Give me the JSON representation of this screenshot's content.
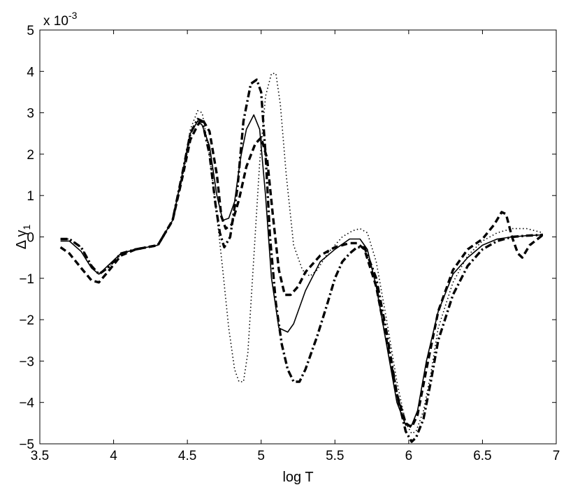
{
  "chart_data": {
    "type": "line",
    "title": "",
    "xlabel": "log T",
    "ylabel_main": "Δ γ",
    "ylabel_sub": "1",
    "y_multiplier": {
      "base": "x 10",
      "exponent": "-3"
    },
    "xlim": [
      3.5,
      7
    ],
    "ylim": [
      -5,
      5
    ],
    "x_ticks": [
      3.5,
      4,
      4.5,
      5,
      5.5,
      6,
      6.5,
      7
    ],
    "x_tick_labels": [
      "3.5",
      "4",
      "4.5",
      "5",
      "5.5",
      "6",
      "6.5",
      "7"
    ],
    "y_ticks": [
      -5,
      -4,
      -3,
      -2,
      -1,
      0,
      1,
      2,
      3,
      4,
      5
    ],
    "y_tick_labels": [
      "−5",
      "−4",
      "−3",
      "−2",
      "−1",
      "0",
      "1",
      "2",
      "3",
      "4",
      "5"
    ],
    "grid": false,
    "legend": "none",
    "series": [
      {
        "style": "solid",
        "color": "#000000",
        "x": [
          3.64,
          3.7,
          3.78,
          3.85,
          3.9,
          3.96,
          4.05,
          4.15,
          4.3,
          4.4,
          4.47,
          4.52,
          4.57,
          4.6,
          4.65,
          4.7,
          4.74,
          4.78,
          4.82,
          4.86,
          4.9,
          4.95,
          4.99,
          5.03,
          5.07,
          5.12,
          5.18,
          5.22,
          5.3,
          5.4,
          5.5,
          5.6,
          5.67,
          5.72,
          5.78,
          5.85,
          5.92,
          5.98,
          6.02,
          6.06,
          6.12,
          6.2,
          6.3,
          6.4,
          6.5,
          6.6,
          6.7,
          6.8,
          6.91
        ],
        "y": [
          -0.1,
          -0.1,
          -0.35,
          -0.75,
          -0.9,
          -0.7,
          -0.4,
          -0.3,
          -0.2,
          0.4,
          1.6,
          2.5,
          2.8,
          2.7,
          2.2,
          1.0,
          0.4,
          0.45,
          0.85,
          1.9,
          2.6,
          2.95,
          2.6,
          1.0,
          -1.0,
          -2.2,
          -2.3,
          -2.1,
          -1.3,
          -0.6,
          -0.3,
          -0.05,
          -0.05,
          -0.3,
          -1.2,
          -2.6,
          -4.0,
          -4.55,
          -4.55,
          -4.2,
          -3.0,
          -1.8,
          -0.9,
          -0.5,
          -0.2,
          -0.05,
          0.0,
          0.03,
          0.05
        ]
      },
      {
        "style": "dashed",
        "color": "#000000",
        "x": [
          3.64,
          3.7,
          3.78,
          3.85,
          3.9,
          3.96,
          4.05,
          4.15,
          4.3,
          4.4,
          4.47,
          4.52,
          4.57,
          4.6,
          4.65,
          4.7,
          4.73,
          4.76,
          4.8,
          4.85,
          4.9,
          4.96,
          5.0,
          5.04,
          5.08,
          5.12,
          5.16,
          5.2,
          5.25,
          5.3,
          5.4,
          5.5,
          5.6,
          5.65,
          5.7,
          5.78,
          5.85,
          5.92,
          5.98,
          6.02,
          6.06,
          6.12,
          6.2,
          6.3,
          6.4,
          6.5,
          6.58,
          6.63,
          6.66,
          6.7,
          6.74,
          6.77,
          6.82,
          6.91
        ],
        "y": [
          -0.25,
          -0.4,
          -0.75,
          -1.05,
          -1.1,
          -0.85,
          -0.45,
          -0.3,
          -0.2,
          0.4,
          1.5,
          2.35,
          2.7,
          2.85,
          2.55,
          1.5,
          0.5,
          0.2,
          0.3,
          0.9,
          1.7,
          2.25,
          2.4,
          1.9,
          0.5,
          -0.8,
          -1.4,
          -1.4,
          -1.2,
          -0.85,
          -0.45,
          -0.25,
          -0.15,
          -0.15,
          -0.3,
          -1.2,
          -2.5,
          -3.8,
          -4.5,
          -4.6,
          -4.3,
          -3.2,
          -1.8,
          -0.8,
          -0.3,
          -0.05,
          0.3,
          0.6,
          0.55,
          0.0,
          -0.4,
          -0.5,
          -0.2,
          0.05
        ]
      },
      {
        "style": "dashdot",
        "color": "#000000",
        "x": [
          3.64,
          3.7,
          3.78,
          3.85,
          3.9,
          3.96,
          4.05,
          4.15,
          4.3,
          4.4,
          4.47,
          4.52,
          4.57,
          4.6,
          4.65,
          4.69,
          4.72,
          4.75,
          4.79,
          4.84,
          4.88,
          4.93,
          4.97,
          5.0,
          5.03,
          5.06,
          5.1,
          5.14,
          5.18,
          5.22,
          5.26,
          5.3,
          5.38,
          5.45,
          5.5,
          5.55,
          5.6,
          5.65,
          5.7,
          5.78,
          5.85,
          5.92,
          5.98,
          6.02,
          6.05,
          6.1,
          6.15,
          6.2,
          6.3,
          6.4,
          6.5,
          6.6,
          6.7,
          6.8,
          6.91
        ],
        "y": [
          -0.05,
          -0.05,
          -0.25,
          -0.7,
          -0.9,
          -0.75,
          -0.4,
          -0.3,
          -0.2,
          0.4,
          1.6,
          2.5,
          2.85,
          2.8,
          2.0,
          0.8,
          0.1,
          -0.25,
          0.0,
          1.2,
          2.8,
          3.7,
          3.8,
          3.5,
          2.0,
          0.0,
          -1.6,
          -2.6,
          -3.2,
          -3.5,
          -3.5,
          -3.2,
          -2.4,
          -1.6,
          -1.0,
          -0.6,
          -0.4,
          -0.25,
          -0.25,
          -1.0,
          -2.3,
          -3.8,
          -4.7,
          -4.95,
          -4.85,
          -4.4,
          -3.5,
          -2.5,
          -1.4,
          -0.7,
          -0.3,
          -0.1,
          0.0,
          0.03,
          0.05
        ]
      },
      {
        "style": "dotted",
        "color": "#000000",
        "x": [
          3.64,
          3.7,
          3.78,
          3.85,
          3.9,
          3.96,
          4.05,
          4.15,
          4.3,
          4.4,
          4.47,
          4.52,
          4.57,
          4.6,
          4.65,
          4.7,
          4.74,
          4.78,
          4.82,
          4.85,
          4.88,
          4.91,
          4.95,
          4.99,
          5.03,
          5.07,
          5.1,
          5.13,
          5.17,
          5.22,
          5.28,
          5.33,
          5.38,
          5.45,
          5.55,
          5.62,
          5.67,
          5.72,
          5.78,
          5.85,
          5.92,
          5.98,
          6.02,
          6.05,
          6.1,
          6.15,
          6.2,
          6.3,
          6.4,
          6.5,
          6.6,
          6.7,
          6.8,
          6.91
        ],
        "y": [
          -0.05,
          -0.05,
          -0.25,
          -0.7,
          -0.9,
          -0.75,
          -0.4,
          -0.3,
          -0.2,
          0.4,
          1.6,
          2.6,
          3.05,
          3.0,
          2.0,
          0.5,
          -0.8,
          -2.2,
          -3.2,
          -3.5,
          -3.5,
          -2.8,
          -0.5,
          1.8,
          3.4,
          3.95,
          3.95,
          3.2,
          1.5,
          -0.2,
          -0.8,
          -0.95,
          -0.8,
          -0.4,
          0.0,
          0.15,
          0.2,
          0.1,
          -0.6,
          -2.0,
          -3.5,
          -4.5,
          -4.75,
          -4.7,
          -4.2,
          -3.3,
          -2.2,
          -1.1,
          -0.45,
          -0.1,
          0.1,
          0.2,
          0.2,
          0.1
        ]
      }
    ]
  }
}
